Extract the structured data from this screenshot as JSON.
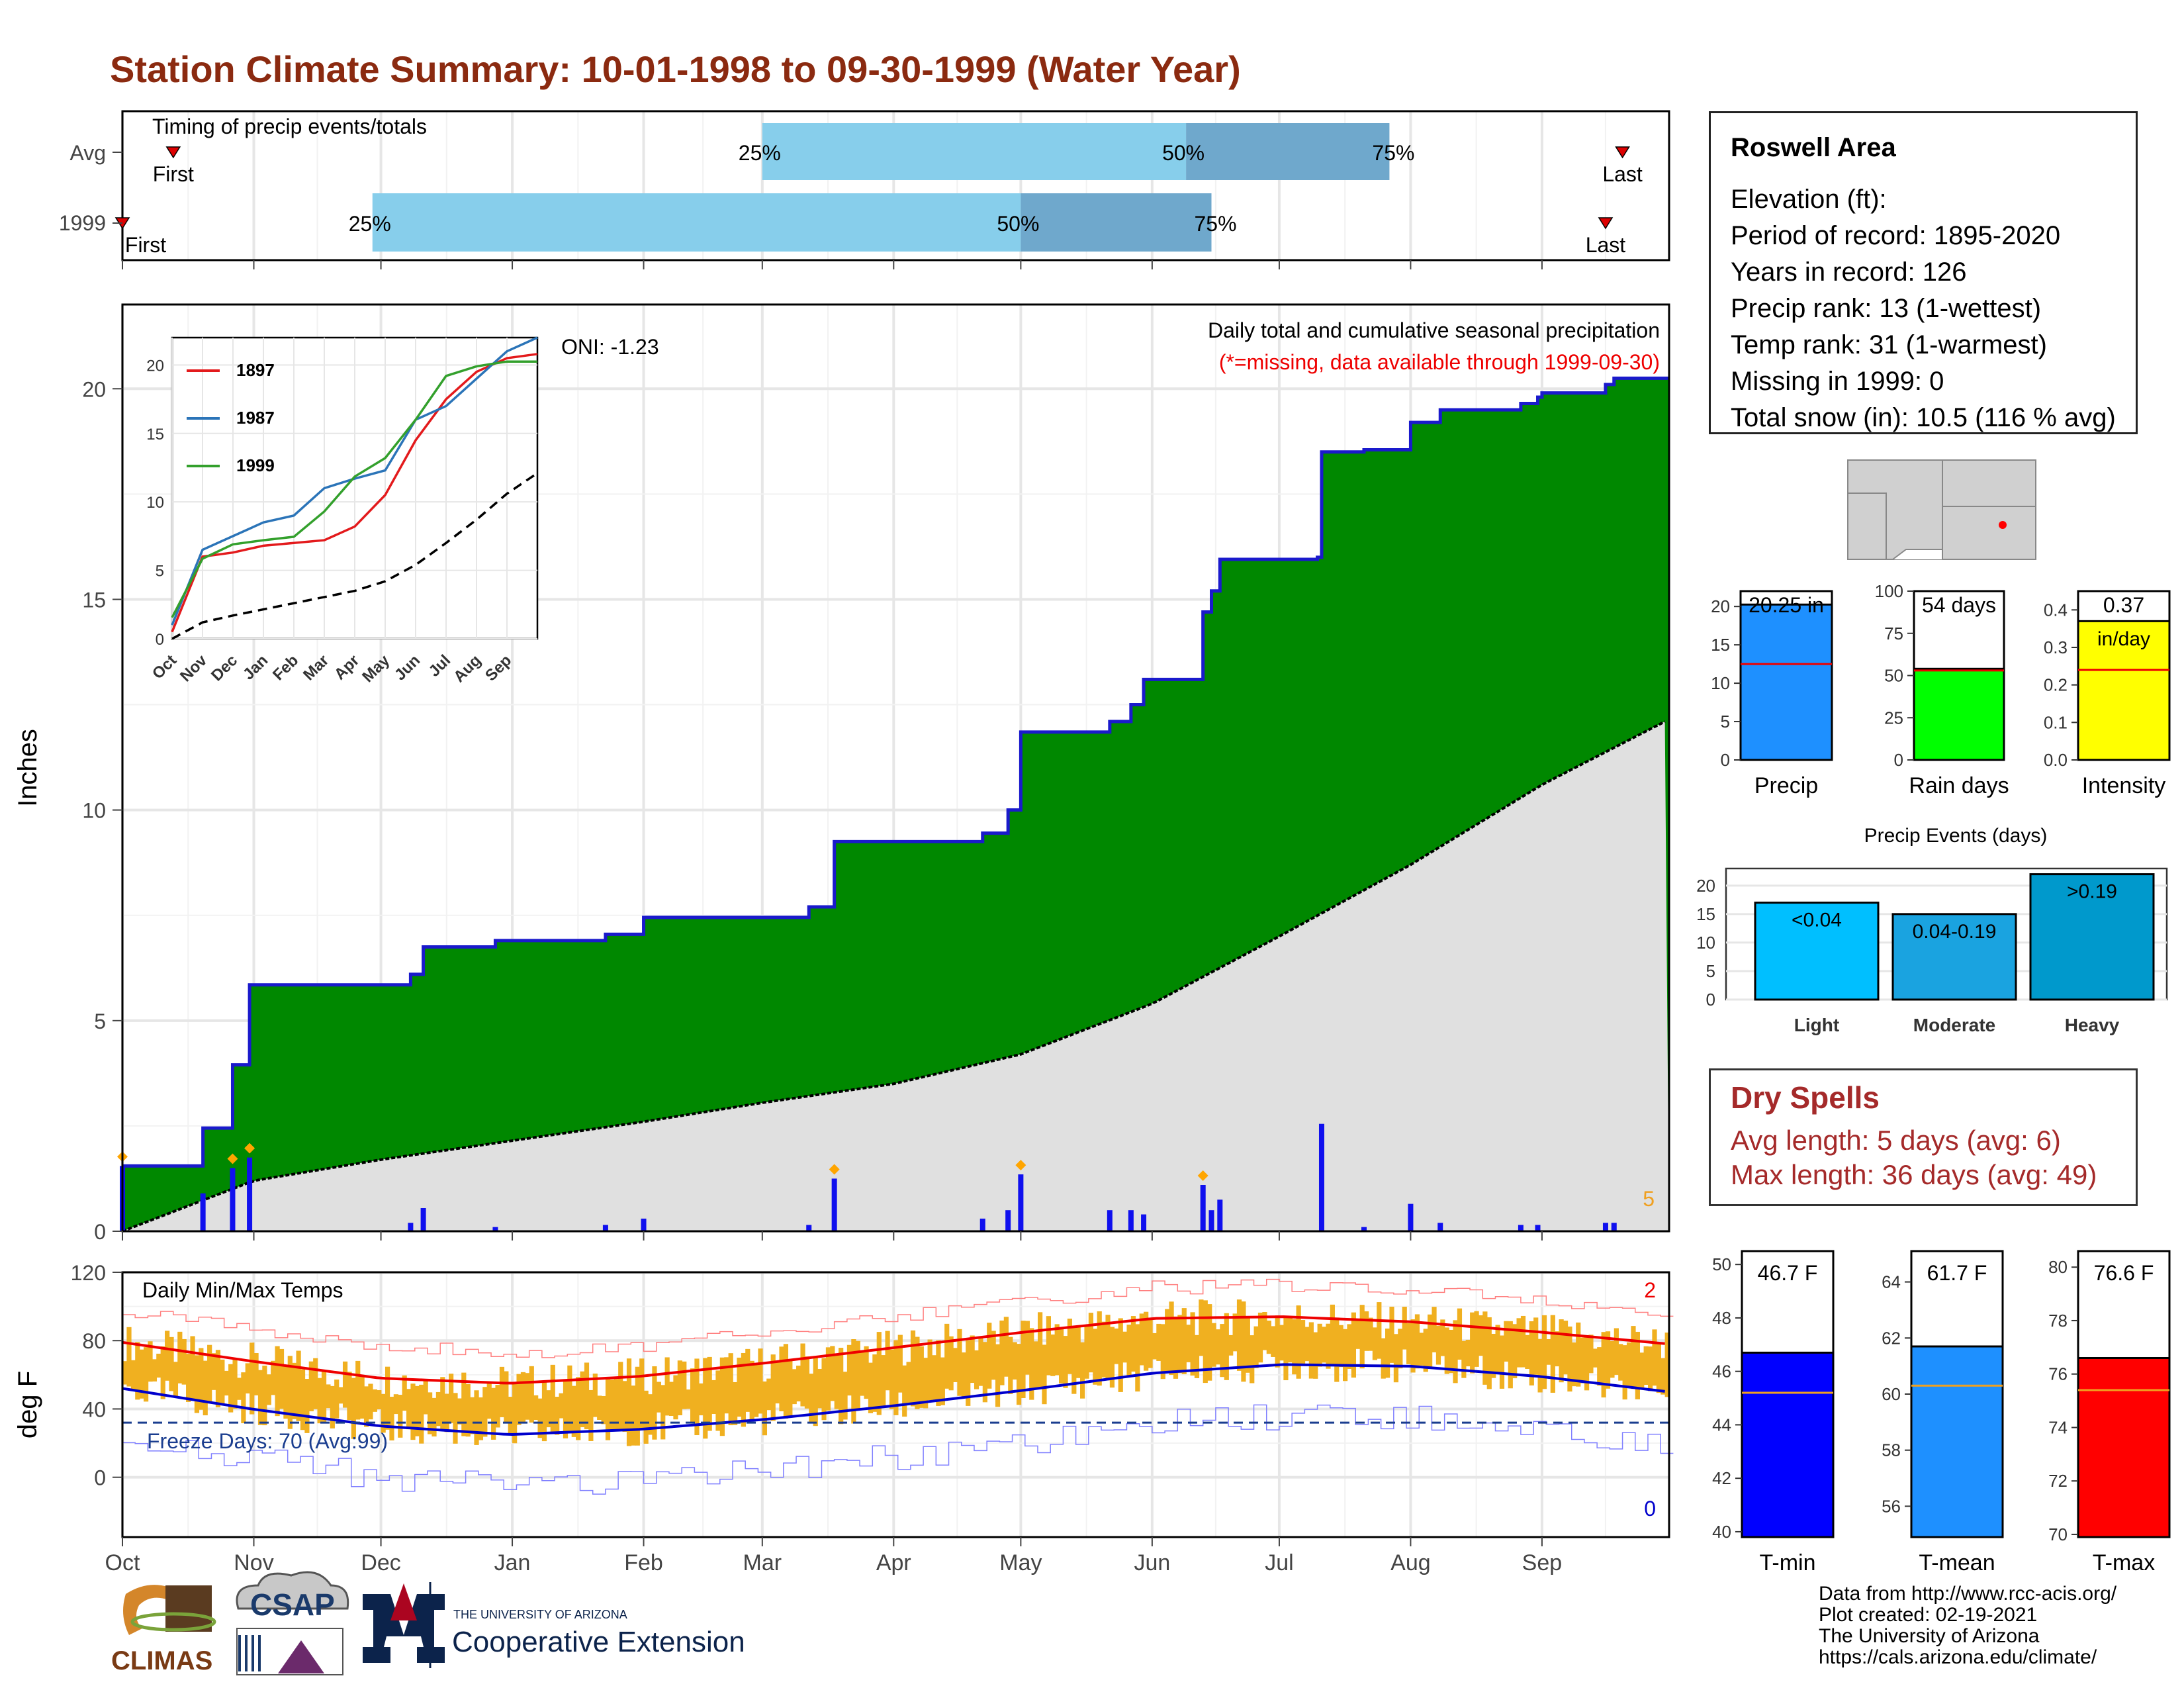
{
  "title": "Station Climate Summary: 10-01-1998 to 09-30-1999 (Water Year)",
  "colors": {
    "title": "#8b2a10",
    "cumulative_area": "#008800",
    "cumulative_line": "#1a1acc",
    "avg_area": "#e0e0e0",
    "daily_bar": "#1010ee",
    "timing_light": "#87ceeb",
    "timing_dark": "#6fa8cc",
    "temp_bar": "#f0b020",
    "missing_note": "#ee0000",
    "dry_spell": "#a52a2a"
  },
  "timing": {
    "title": "Timing of precip events/totals",
    "rows": [
      {
        "label": "Avg",
        "first_label": "First",
        "last_label": "Last",
        "p25": "25%",
        "p50": "50%",
        "p75": "75%"
      },
      {
        "label": "1999",
        "first_label": "First",
        "last_label": "Last",
        "p25": "25%",
        "p50": "50%",
        "p75": "75%"
      }
    ]
  },
  "precip_panel": {
    "ylabel": "Inches",
    "yticks": [
      "0",
      "5",
      "10",
      "15",
      "20"
    ],
    "oni": "ONI: -1.23",
    "subtitle": "Daily total and cumulative seasonal precipitation",
    "missing_note": "(*=missing, data available through 1999-09-30)",
    "corner_number": "5"
  },
  "inset": {
    "yticks": [
      "0",
      "5",
      "10",
      "15",
      "20"
    ],
    "months": [
      "Oct",
      "Nov",
      "Dec",
      "Jan",
      "Feb",
      "Mar",
      "Apr",
      "May",
      "Jun",
      "Jul",
      "Aug",
      "Sep"
    ],
    "legend": [
      {
        "name": "1897",
        "color": "#e31a1c"
      },
      {
        "name": "1987",
        "color": "#2b74b8"
      },
      {
        "name": "1999",
        "color": "#33a02c"
      }
    ]
  },
  "temp_panel": {
    "ylabel": "deg F",
    "yticks": [
      "0",
      "40",
      "80",
      "120"
    ],
    "title": "Daily Min/Max Temps",
    "freeze": "Freeze Days: 70 (Avg:99)",
    "record_high_count": "2",
    "record_low_count": "0"
  },
  "months": [
    "Oct",
    "Nov",
    "Dec",
    "Jan",
    "Feb",
    "Mar",
    "Apr",
    "May",
    "Jun",
    "Jul",
    "Aug",
    "Sep"
  ],
  "station": {
    "name": "Roswell Area",
    "lines": [
      "Elevation (ft):",
      "Period of record: 1895-2020",
      "Years in record: 126",
      "Precip rank: 13 (1-wettest)",
      "Temp rank: 31 (1-warmest)",
      "Missing in 1999: 0",
      "Total snow (in): 10.5 (116 % avg)"
    ]
  },
  "summary_bars": [
    {
      "label": "Precip",
      "value_label": "20.25 in",
      "unit_label": "",
      "yticks": [
        "0",
        "5",
        "10",
        "15",
        "20"
      ],
      "color": "#1e90ff"
    },
    {
      "label": "Rain days",
      "value_label": "54 days",
      "unit_label": "",
      "yticks": [
        "0",
        "25",
        "50",
        "75",
        "100"
      ],
      "color": "#00ff00"
    },
    {
      "label": "Intensity",
      "value_label": "0.37",
      "unit_label": "in/day",
      "yticks": [
        "0.0",
        "0.1",
        "0.2",
        "0.3",
        "0.4"
      ],
      "color": "#ffff00"
    }
  ],
  "precip_events": {
    "title": "Precip Events (days)",
    "yticks": [
      "0",
      "5",
      "10",
      "15",
      "20"
    ],
    "bars": [
      {
        "label": "Light",
        "value_label": "<0.04",
        "color": "#00bfff"
      },
      {
        "label": "Moderate",
        "value_label": "0.04-0.19",
        "color": "#1aa3e0"
      },
      {
        "label": "Heavy",
        "value_label": ">0.19",
        "color": "#0099cc"
      }
    ]
  },
  "dry_spells": {
    "title": "Dry Spells",
    "avg": "Avg length: 5 days (avg: 6)",
    "max": "Max length: 36 days (avg: 49)"
  },
  "temp_bars": [
    {
      "label": "T-min",
      "value_label": "46.7 F",
      "yticks": [
        "40",
        "42",
        "44",
        "46",
        "48",
        "50"
      ],
      "color": "#0000ff"
    },
    {
      "label": "T-mean",
      "value_label": "61.7 F",
      "yticks": [
        "56",
        "58",
        "60",
        "62",
        "64"
      ],
      "color": "#1e90ff"
    },
    {
      "label": "T-max",
      "value_label": "76.6 F",
      "yticks": [
        "70",
        "72",
        "74",
        "76",
        "78",
        "80"
      ],
      "color": "#ff0000"
    }
  ],
  "footer": [
    "Data from http://www.rcc-acis.org/",
    "Plot created: 02-19-2021",
    "The University of Arizona",
    "https://cals.arizona.edu/climate/"
  ],
  "logos": {
    "climas": "CLIMAS",
    "csap": "CSAP",
    "ua_small": "THE UNIVERSITY OF ARIZONA",
    "ua_big": "Cooperative Extension"
  },
  "chart_data": [
    {
      "type": "bar",
      "title": "Timing of precip events/totals",
      "series": [
        {
          "name": "Avg",
          "first": "1998-10-13",
          "p25": "1999-03-01",
          "p50": "1999-06-09",
          "p75": "1999-07-27",
          "last": "1999-09-20"
        },
        {
          "name": "1999",
          "first": "1998-10-01",
          "p25": "1998-11-29",
          "p50": "1999-05-01",
          "p75": "1999-06-15",
          "last": "1999-09-16"
        }
      ]
    },
    {
      "type": "area",
      "title": "Daily total and cumulative seasonal precipitation",
      "ylabel": "Inches",
      "ylim": [
        0,
        22
      ],
      "cumulative_1999": [
        [
          "1998-10-01",
          1.55
        ],
        [
          "1998-10-20",
          2.45
        ],
        [
          "1998-10-27",
          3.95
        ],
        [
          "1998-10-31",
          5.85
        ],
        [
          "1998-12-08",
          6.1
        ],
        [
          "1998-12-11",
          6.75
        ],
        [
          "1998-12-28",
          6.9
        ],
        [
          "1999-01-23",
          7.05
        ],
        [
          "1999-02-01",
          7.45
        ],
        [
          "1999-03-06",
          7.45
        ],
        [
          "1999-03-12",
          7.7
        ],
        [
          "1999-03-18",
          9.25
        ],
        [
          "1999-04-22",
          9.45
        ],
        [
          "1999-04-28",
          10.0
        ],
        [
          "1999-05-01",
          11.85
        ],
        [
          "1999-05-22",
          12.1
        ],
        [
          "1999-05-27",
          12.5
        ],
        [
          "1999-05-30",
          13.1
        ],
        [
          "1999-06-08",
          13.1
        ],
        [
          "1999-06-13",
          14.7
        ],
        [
          "1999-06-15",
          15.2
        ],
        [
          "1999-06-17",
          15.95
        ],
        [
          "1999-07-10",
          16.0
        ],
        [
          "1999-07-11",
          18.5
        ],
        [
          "1999-07-21",
          18.55
        ],
        [
          "1999-08-01",
          19.2
        ],
        [
          "1999-08-08",
          19.5
        ],
        [
          "1999-08-27",
          19.65
        ],
        [
          "1999-08-31",
          19.8
        ],
        [
          "1999-09-01",
          19.9
        ],
        [
          "1999-09-16",
          20.1
        ],
        [
          "1999-09-18",
          20.25
        ]
      ],
      "average_cumulative": [
        [
          "1998-10-01",
          0.0
        ],
        [
          "1998-11-01",
          1.2
        ],
        [
          "1998-12-01",
          1.7
        ],
        [
          "1999-01-01",
          2.15
        ],
        [
          "1999-02-01",
          2.6
        ],
        [
          "1999-03-01",
          3.05
        ],
        [
          "1999-04-01",
          3.5
        ],
        [
          "1999-05-01",
          4.2
        ],
        [
          "1999-06-01",
          5.4
        ],
        [
          "1999-07-01",
          7.0
        ],
        [
          "1999-08-01",
          8.7
        ],
        [
          "1999-09-01",
          10.6
        ],
        [
          "1999-09-30",
          12.1
        ]
      ],
      "daily_precip": [
        [
          "1998-10-01",
          1.55
        ],
        [
          "1998-10-20",
          0.9
        ],
        [
          "1998-10-27",
          1.5
        ],
        [
          "1998-10-31",
          1.75
        ],
        [
          "1998-12-08",
          0.2
        ],
        [
          "1998-12-11",
          0.55
        ],
        [
          "1998-12-28",
          0.1
        ],
        [
          "1999-01-23",
          0.15
        ],
        [
          "1999-02-01",
          0.3
        ],
        [
          "1999-03-12",
          0.15
        ],
        [
          "1999-03-18",
          1.25
        ],
        [
          "1999-04-22",
          0.3
        ],
        [
          "1999-04-28",
          0.5
        ],
        [
          "1999-05-01",
          1.35
        ],
        [
          "1999-05-22",
          0.5
        ],
        [
          "1999-05-27",
          0.5
        ],
        [
          "1999-05-30",
          0.4
        ],
        [
          "1999-06-13",
          1.1
        ],
        [
          "1999-06-15",
          0.5
        ],
        [
          "1999-06-17",
          0.75
        ],
        [
          "1999-07-11",
          2.55
        ],
        [
          "1999-07-21",
          0.1
        ],
        [
          "1999-08-01",
          0.65
        ],
        [
          "1999-08-08",
          0.2
        ],
        [
          "1999-08-27",
          0.15
        ],
        [
          "1999-08-31",
          0.15
        ],
        [
          "1999-09-16",
          0.2
        ],
        [
          "1999-09-18",
          0.2
        ]
      ]
    },
    {
      "type": "line",
      "title": "",
      "ylim": [
        0,
        22
      ],
      "series": [
        {
          "name": "1897",
          "values": [
            [
              0,
              0.5
            ],
            [
              1,
              6.0
            ],
            [
              2,
              6.3
            ],
            [
              3,
              6.8
            ],
            [
              4,
              7.0
            ],
            [
              5,
              7.2
            ],
            [
              6,
              8.2
            ],
            [
              7,
              10.5
            ],
            [
              8,
              14.5
            ],
            [
              9,
              17.5
            ],
            [
              10,
              19.5
            ],
            [
              11,
              20.5
            ],
            [
              12,
              20.8
            ]
          ]
        },
        {
          "name": "1987",
          "values": [
            [
              0,
              1.0
            ],
            [
              1,
              6.5
            ],
            [
              2,
              7.5
            ],
            [
              3,
              8.5
            ],
            [
              4,
              9.0
            ],
            [
              5,
              11.0
            ],
            [
              6,
              11.7
            ],
            [
              7,
              12.3
            ],
            [
              8,
              16.0
            ],
            [
              9,
              17.0
            ],
            [
              10,
              19.0
            ],
            [
              11,
              21.0
            ],
            [
              12,
              22.0
            ]
          ]
        },
        {
          "name": "1999",
          "values": [
            [
              0,
              1.55
            ],
            [
              1,
              5.85
            ],
            [
              2,
              6.9
            ],
            [
              3,
              7.2
            ],
            [
              4,
              7.45
            ],
            [
              5,
              9.3
            ],
            [
              6,
              11.85
            ],
            [
              7,
              13.2
            ],
            [
              8,
              16.0
            ],
            [
              9,
              19.2
            ],
            [
              10,
              19.9
            ],
            [
              11,
              20.25
            ],
            [
              12,
              20.25
            ]
          ]
        },
        {
          "name": "Average",
          "values": [
            [
              0,
              0.0
            ],
            [
              1,
              1.2
            ],
            [
              2,
              1.7
            ],
            [
              3,
              2.15
            ],
            [
              4,
              2.6
            ],
            [
              5,
              3.05
            ],
            [
              6,
              3.5
            ],
            [
              7,
              4.2
            ],
            [
              8,
              5.4
            ],
            [
              9,
              7.0
            ],
            [
              10,
              8.7
            ],
            [
              11,
              10.6
            ],
            [
              12,
              12.1
            ]
          ]
        }
      ]
    },
    {
      "type": "line",
      "title": "Daily Min/Max Temps",
      "ylabel": "deg F",
      "ylim": [
        -35,
        120
      ],
      "normal_max": [
        [
          0,
          79
        ],
        [
          1,
          68
        ],
        [
          2,
          58
        ],
        [
          3,
          55
        ],
        [
          4,
          59
        ],
        [
          5,
          67
        ],
        [
          6,
          76
        ],
        [
          7,
          85
        ],
        [
          8,
          93
        ],
        [
          9,
          94
        ],
        [
          10,
          91
        ],
        [
          11,
          85
        ],
        [
          12,
          78
        ]
      ],
      "normal_min": [
        [
          0,
          52
        ],
        [
          1,
          40
        ],
        [
          2,
          30
        ],
        [
          3,
          25
        ],
        [
          4,
          28
        ],
        [
          5,
          34
        ],
        [
          6,
          42
        ],
        [
          7,
          51
        ],
        [
          8,
          61
        ],
        [
          9,
          66
        ],
        [
          10,
          65
        ],
        [
          11,
          59
        ],
        [
          12,
          50
        ]
      ],
      "freeze_line": 32,
      "freeze_days": 70,
      "freeze_days_avg": 99
    },
    {
      "type": "bar",
      "categories": [
        "Precip",
        "Rain days",
        "Intensity"
      ],
      "values": [
        20.25,
        54,
        0.37
      ],
      "averages": [
        12.5,
        53,
        0.24
      ],
      "ylims": [
        [
          0,
          22
        ],
        [
          0,
          100
        ],
        [
          0,
          0.45
        ]
      ]
    },
    {
      "type": "bar",
      "title": "Precip Events (days)",
      "categories": [
        "Light",
        "Moderate",
        "Heavy"
      ],
      "values": [
        17,
        15,
        22
      ],
      "ylim": [
        0,
        23
      ]
    },
    {
      "type": "bar",
      "categories": [
        "T-min",
        "T-mean",
        "T-max"
      ],
      "values": [
        46.7,
        61.7,
        76.6
      ],
      "averages": [
        45.2,
        60.3,
        75.4
      ],
      "ylims": [
        [
          39.8,
          50.5
        ],
        [
          54.9,
          65.1
        ],
        [
          69.9,
          80.6
        ]
      ]
    }
  ]
}
